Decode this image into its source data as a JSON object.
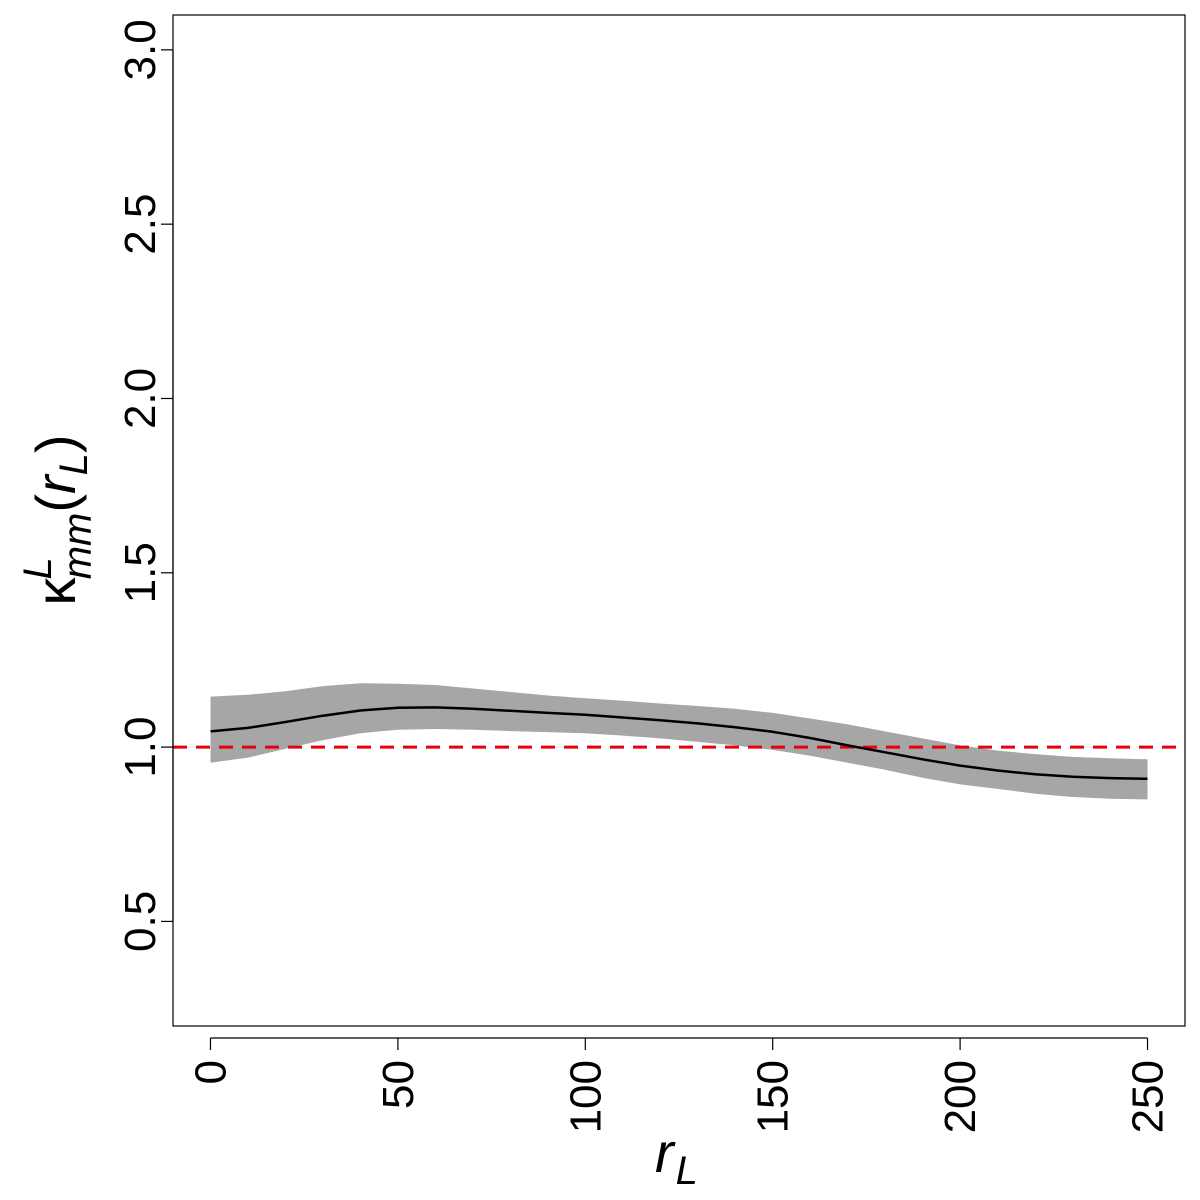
{
  "chart_data": {
    "type": "line",
    "title": "",
    "xlabel_main": "r",
    "xlabel_sub": "L",
    "ylabel_symbol": "κ",
    "ylabel_sup": "L",
    "ylabel_sub": "mm",
    "ylabel_open": "(",
    "ylabel_arg_main": "r",
    "ylabel_arg_sub": "L",
    "ylabel_close": ")",
    "xlim": [
      -10,
      260
    ],
    "ylim": [
      0.2,
      3.1
    ],
    "x_ticks": [
      0,
      50,
      100,
      150,
      200,
      250
    ],
    "x_tick_labels": [
      "0",
      "50",
      "100",
      "150",
      "200",
      "250"
    ],
    "y_ticks": [
      0.5,
      1.0,
      1.5,
      2.0,
      2.5,
      3.0
    ],
    "y_tick_labels": [
      "0.5",
      "1.0",
      "1.5",
      "2.0",
      "2.5",
      "3.0"
    ],
    "grid": false,
    "reference_line": {
      "y": 1.0,
      "color": "#e8000b",
      "style": "dashed"
    },
    "colors": {
      "line": "#000000",
      "band": "#a6a6a6",
      "reference": "#e8000b"
    },
    "series": [
      {
        "x": [
          0,
          10,
          20,
          30,
          40,
          50,
          60,
          70,
          80,
          90,
          100,
          110,
          120,
          130,
          140,
          150,
          160,
          170,
          180,
          190,
          200,
          210,
          220,
          230,
          240,
          250
        ],
        "y": [
          1.045,
          1.055,
          1.072,
          1.09,
          1.105,
          1.113,
          1.114,
          1.11,
          1.104,
          1.098,
          1.093,
          1.085,
          1.077,
          1.068,
          1.057,
          1.044,
          1.026,
          1.005,
          0.985,
          0.965,
          0.947,
          0.933,
          0.922,
          0.915,
          0.911,
          0.909
        ],
        "lower": [
          0.955,
          0.97,
          0.995,
          1.02,
          1.04,
          1.05,
          1.052,
          1.05,
          1.046,
          1.043,
          1.04,
          1.033,
          1.025,
          1.015,
          1.005,
          0.992,
          0.975,
          0.955,
          0.935,
          0.912,
          0.893,
          0.88,
          0.866,
          0.857,
          0.852,
          0.85
        ],
        "upper": [
          1.145,
          1.15,
          1.16,
          1.175,
          1.183,
          1.182,
          1.178,
          1.168,
          1.158,
          1.148,
          1.14,
          1.133,
          1.125,
          1.118,
          1.11,
          1.098,
          1.082,
          1.065,
          1.045,
          1.025,
          1.005,
          0.99,
          0.98,
          0.972,
          0.968,
          0.965
        ]
      }
    ]
  }
}
